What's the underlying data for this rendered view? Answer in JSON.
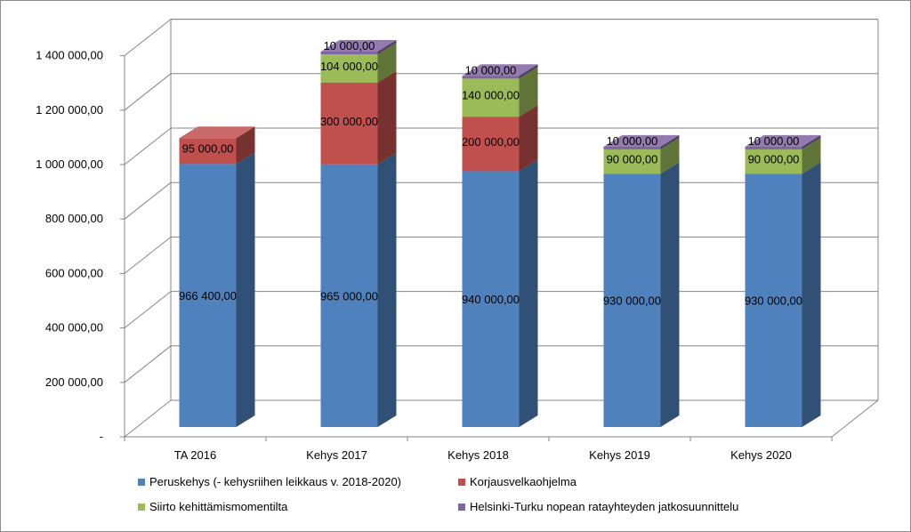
{
  "chart_data": {
    "type": "bar",
    "stacked": true,
    "three_d": true,
    "categories": [
      "TA 2016",
      "Kehys 2017",
      "Kehys 2018",
      "Kehys 2019",
      "Kehys 2020"
    ],
    "series": [
      {
        "name": "Peruskehys (- kehysriihen leikkaus v. 2018-2020)",
        "color": "#4F81BD",
        "values": [
          966400,
          965000,
          940000,
          930000,
          930000
        ],
        "labels": [
          "966 400,00",
          "965 000,00",
          "940 000,00",
          "930 000,00",
          "930 000,00"
        ]
      },
      {
        "name": "Korjausvelkaohjelma",
        "color": "#C0504D",
        "values": [
          95000,
          300000,
          200000,
          0,
          0
        ],
        "labels": [
          "95 000,00",
          "300 000,00",
          "200 000,00",
          "",
          ""
        ]
      },
      {
        "name": "Siirto kehittämismomentilta",
        "color": "#9BBB59",
        "values": [
          0,
          104000,
          140000,
          90000,
          90000
        ],
        "labels": [
          "",
          "104 000,00",
          "140 000,00",
          "90 000,00",
          "90 000,00"
        ]
      },
      {
        "name": "Helsinki-Turku nopean ratayhteyden jatkosuunnittelu",
        "color": "#8064A2",
        "values": [
          0,
          10000,
          10000,
          10000,
          10000
        ],
        "labels": [
          "",
          "10 000,00",
          "10 000,00",
          "10 000,00",
          "10 000,00"
        ]
      }
    ],
    "y_ticks": [
      {
        "value": 0,
        "label": "-"
      },
      {
        "value": 200000,
        "label": "200 000,00"
      },
      {
        "value": 400000,
        "label": "400 000,00"
      },
      {
        "value": 600000,
        "label": "600 000,00"
      },
      {
        "value": 800000,
        "label": "800 000,00"
      },
      {
        "value": 1000000,
        "label": "1 000 000,00"
      },
      {
        "value": 1200000,
        "label": "1 200 000,00"
      },
      {
        "value": 1400000,
        "label": "1 400 000,00"
      }
    ],
    "ylim": [
      0,
      1400000
    ],
    "grid": true,
    "legend_position": "bottom"
  }
}
